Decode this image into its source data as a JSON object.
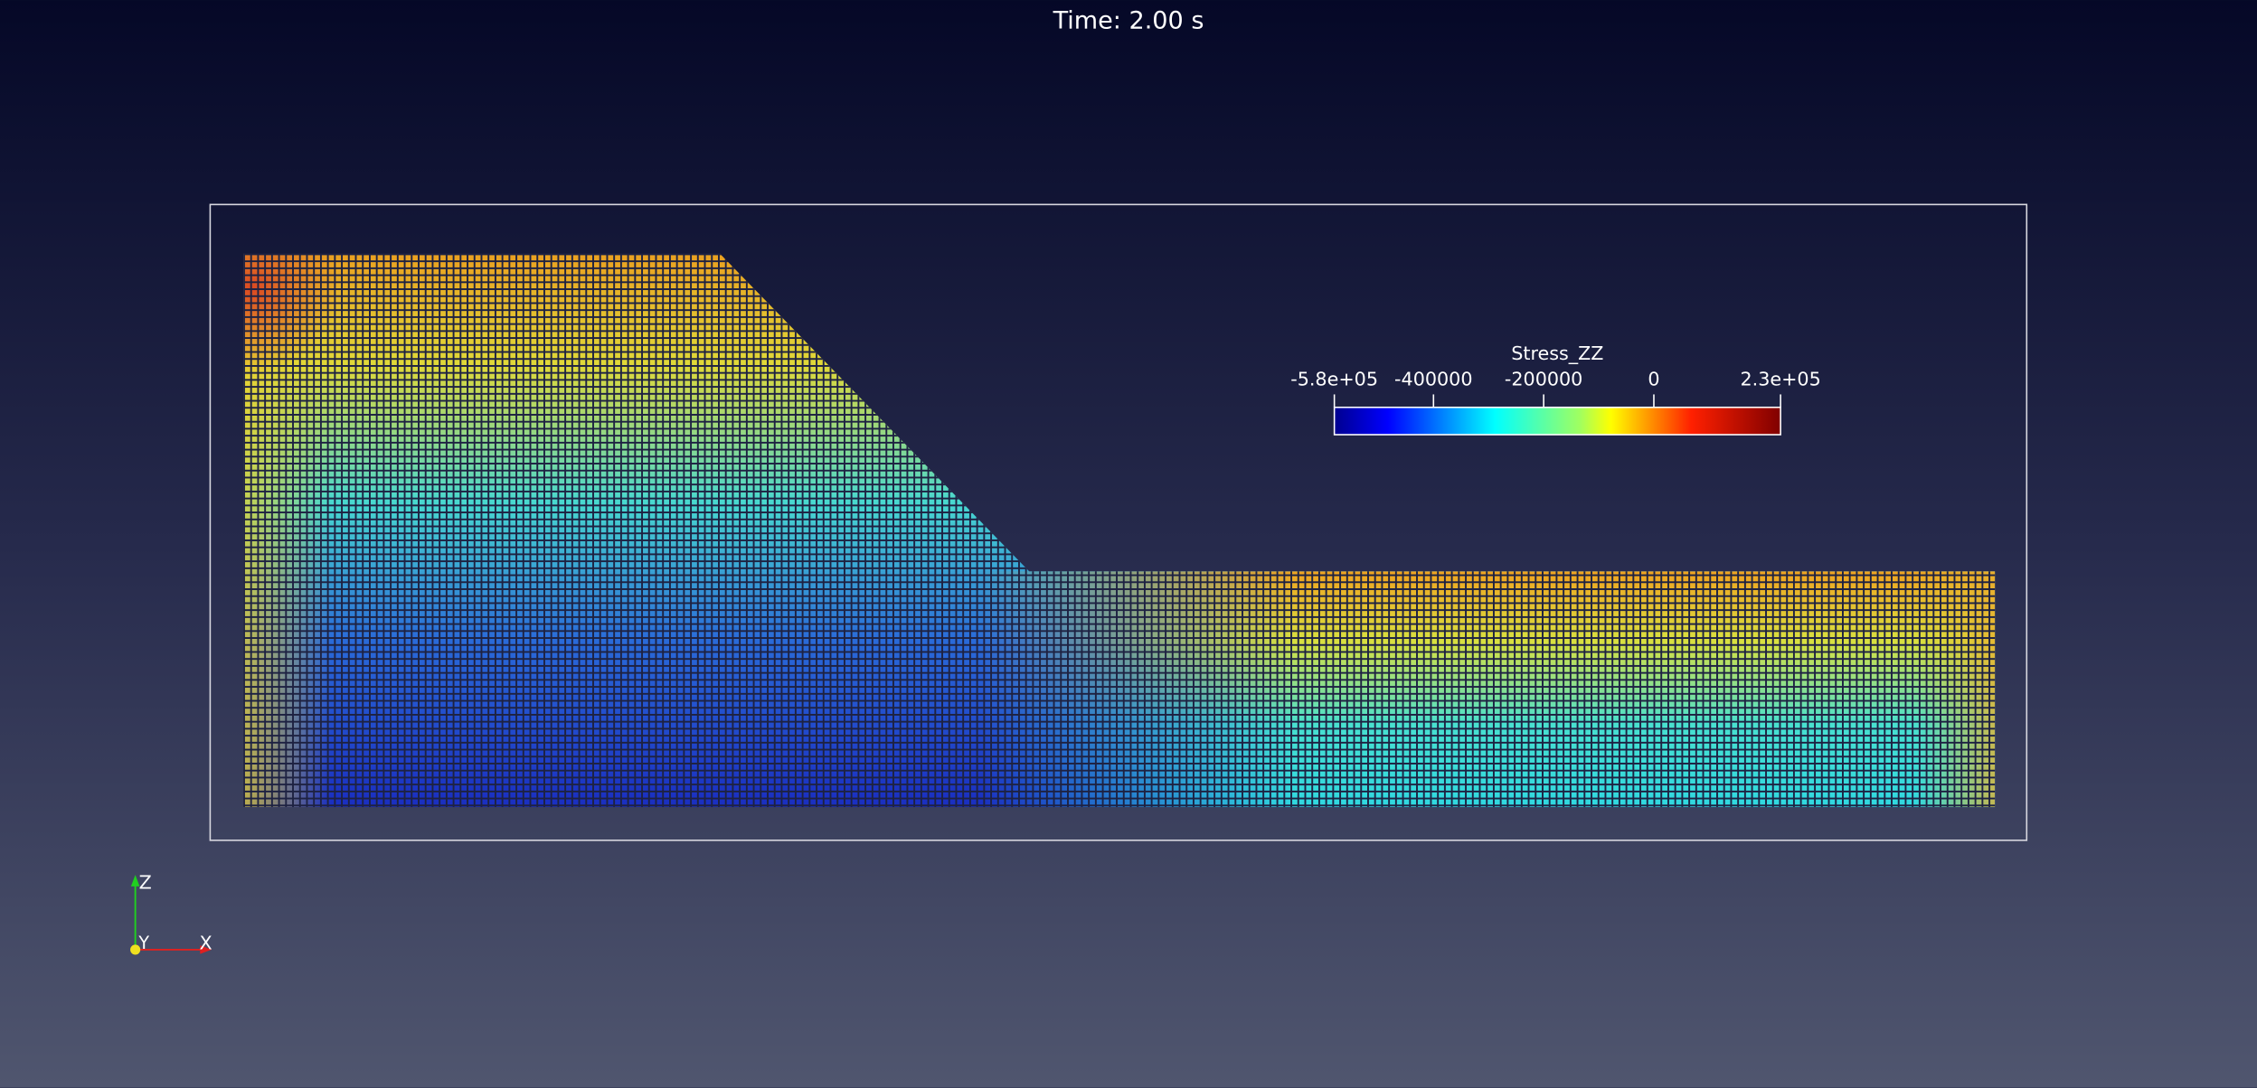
{
  "header": {
    "time": "Time: 2.00 s"
  },
  "colorbar": {
    "title": "Stress_ZZ",
    "range": [
      -580000,
      230000
    ],
    "ticks": [
      {
        "value": -580000,
        "label": "-5.8e+05"
      },
      -400000,
      -200000,
      0,
      {
        "value": 230000,
        "label": "2.3e+05"
      }
    ]
  },
  "axes": {
    "z": "Z",
    "y": "Y",
    "x": "X"
  }
}
